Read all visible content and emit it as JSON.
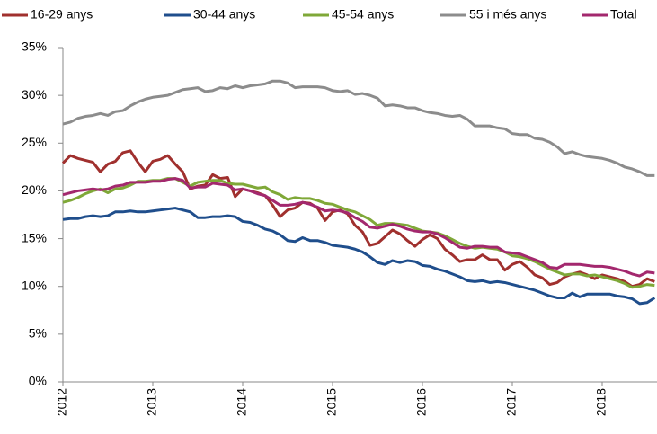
{
  "chart_data": {
    "type": "line",
    "categories": [
      "2012",
      null,
      null,
      null,
      null,
      null,
      null,
      null,
      null,
      null,
      null,
      null,
      "2013",
      null,
      null,
      null,
      null,
      null,
      null,
      null,
      null,
      null,
      null,
      null,
      "2014",
      null,
      null,
      null,
      null,
      null,
      null,
      null,
      null,
      null,
      null,
      null,
      "2015",
      null,
      null,
      null,
      null,
      null,
      null,
      null,
      null,
      null,
      null,
      null,
      "2016",
      null,
      null,
      null,
      null,
      null,
      null,
      null,
      null,
      null,
      null,
      null,
      "2017",
      null,
      null,
      null,
      null,
      null,
      null,
      null,
      null,
      null,
      null,
      null,
      "2018",
      null,
      null,
      null,
      null,
      null,
      null,
      null
    ],
    "series": [
      {
        "name": "16-29 anys",
        "color": "#a0302e",
        "values": [
          22.9,
          23.7,
          23.4,
          23.2,
          23.0,
          22.0,
          22.8,
          23.1,
          24.0,
          24.2,
          23.0,
          22.0,
          23.1,
          23.3,
          23.7,
          22.8,
          22.0,
          20.2,
          20.5,
          20.6,
          21.7,
          21.3,
          21.4,
          19.4,
          20.2,
          20.0,
          19.8,
          19.5,
          18.5,
          17.3,
          18.0,
          18.2,
          18.8,
          18.7,
          18.2,
          16.9,
          17.8,
          18.0,
          17.6,
          16.4,
          15.7,
          14.3,
          14.5,
          15.2,
          15.9,
          15.5,
          14.8,
          14.2,
          14.9,
          15.4,
          15.0,
          13.9,
          13.3,
          12.6,
          12.8,
          12.8,
          13.3,
          12.8,
          12.8,
          11.7,
          12.3,
          12.6,
          12.0,
          11.2,
          10.9,
          10.2,
          10.4,
          11.0,
          11.3,
          11.5,
          11.2,
          10.8,
          11.2,
          11.0,
          10.8,
          10.5,
          10.0,
          10.2,
          10.8,
          10.5
        ]
      },
      {
        "name": "30-44 anys",
        "color": "#1f4e8c",
        "values": [
          17.0,
          17.1,
          17.1,
          17.3,
          17.4,
          17.3,
          17.4,
          17.8,
          17.8,
          17.9,
          17.8,
          17.8,
          17.9,
          18.0,
          18.1,
          18.2,
          18.0,
          17.8,
          17.2,
          17.2,
          17.3,
          17.3,
          17.4,
          17.3,
          16.8,
          16.7,
          16.4,
          16.0,
          15.8,
          15.4,
          14.8,
          14.7,
          15.1,
          14.8,
          14.8,
          14.6,
          14.3,
          14.2,
          14.1,
          13.9,
          13.6,
          13.1,
          12.5,
          12.3,
          12.7,
          12.5,
          12.7,
          12.6,
          12.2,
          12.1,
          11.8,
          11.6,
          11.3,
          11.0,
          10.6,
          10.5,
          10.6,
          10.4,
          10.5,
          10.4,
          10.2,
          10.0,
          9.8,
          9.6,
          9.3,
          9.0,
          8.8,
          8.8,
          9.3,
          8.9,
          9.2,
          9.2,
          9.2,
          9.2,
          9.0,
          8.9,
          8.7,
          8.2,
          8.3,
          8.8
        ]
      },
      {
        "name": "45-54 anys",
        "color": "#7fa838",
        "values": [
          18.8,
          19.0,
          19.3,
          19.7,
          20.0,
          20.2,
          19.8,
          20.2,
          20.3,
          20.6,
          21.0,
          21.0,
          21.1,
          21.1,
          21.3,
          21.3,
          20.9,
          20.5,
          20.9,
          21.0,
          21.1,
          21.1,
          20.8,
          20.7,
          20.7,
          20.5,
          20.3,
          20.4,
          19.9,
          19.6,
          19.1,
          19.3,
          19.2,
          19.2,
          19.0,
          18.7,
          18.6,
          18.3,
          18.0,
          17.8,
          17.4,
          17.0,
          16.4,
          16.6,
          16.6,
          16.5,
          16.4,
          16.1,
          15.8,
          15.7,
          15.6,
          15.3,
          14.9,
          14.5,
          14.2,
          14.0,
          14.1,
          14.0,
          13.9,
          13.6,
          13.2,
          13.1,
          12.9,
          12.6,
          12.2,
          11.8,
          11.5,
          11.2,
          11.3,
          11.3,
          11.1,
          11.2,
          11.0,
          10.8,
          10.6,
          10.3,
          9.9,
          10.0,
          10.2,
          10.1
        ]
      },
      {
        "name": "55 i més anys",
        "color": "#8c8c8c",
        "values": [
          27.0,
          27.2,
          27.6,
          27.8,
          27.9,
          28.1,
          27.9,
          28.3,
          28.4,
          28.9,
          29.3,
          29.6,
          29.8,
          29.9,
          30.0,
          30.3,
          30.6,
          30.7,
          30.8,
          30.4,
          30.5,
          30.8,
          30.7,
          31.0,
          30.8,
          31.0,
          31.1,
          31.2,
          31.5,
          31.5,
          31.3,
          30.8,
          30.9,
          30.9,
          30.9,
          30.8,
          30.5,
          30.4,
          30.5,
          30.1,
          30.2,
          30.0,
          29.7,
          28.9,
          29.0,
          28.9,
          28.7,
          28.7,
          28.4,
          28.2,
          28.1,
          27.9,
          27.8,
          27.9,
          27.5,
          26.8,
          26.8,
          26.8,
          26.6,
          26.5,
          26.0,
          25.9,
          25.9,
          25.5,
          25.4,
          25.1,
          24.6,
          23.9,
          24.1,
          23.8,
          23.6,
          23.5,
          23.4,
          23.2,
          22.9,
          22.5,
          22.3,
          22.0,
          21.6,
          21.6
        ]
      },
      {
        "name": "Total",
        "color": "#a3286e",
        "values": [
          19.6,
          19.8,
          20.0,
          20.1,
          20.2,
          20.1,
          20.2,
          20.5,
          20.6,
          20.9,
          20.9,
          20.9,
          21.0,
          21.0,
          21.2,
          21.3,
          21.1,
          20.3,
          20.4,
          20.4,
          20.8,
          20.7,
          20.6,
          20.1,
          20.2,
          20.0,
          19.7,
          19.5,
          19.0,
          18.5,
          18.5,
          18.6,
          18.8,
          18.6,
          18.3,
          17.9,
          18.0,
          17.9,
          17.7,
          17.2,
          16.8,
          16.2,
          16.1,
          16.3,
          16.5,
          16.3,
          16.0,
          15.8,
          15.7,
          15.7,
          15.5,
          15.1,
          14.6,
          14.1,
          14.0,
          14.2,
          14.2,
          14.1,
          14.1,
          13.6,
          13.5,
          13.4,
          13.1,
          12.8,
          12.5,
          12.0,
          11.9,
          12.3,
          12.3,
          12.3,
          12.2,
          12.1,
          12.1,
          12.0,
          11.8,
          11.6,
          11.3,
          11.1,
          11.5,
          11.4
        ]
      }
    ],
    "ylim": [
      0,
      35
    ],
    "yticks": [
      {
        "value": 0,
        "label": "0%"
      },
      {
        "value": 5,
        "label": "5%"
      },
      {
        "value": 10,
        "label": "10%"
      },
      {
        "value": 15,
        "label": "15%"
      },
      {
        "value": 20,
        "label": "20%"
      },
      {
        "value": 25,
        "label": "25%"
      },
      {
        "value": 30,
        "label": "30%"
      },
      {
        "value": 35,
        "label": "35%"
      }
    ],
    "grid": false,
    "legend": "top"
  }
}
